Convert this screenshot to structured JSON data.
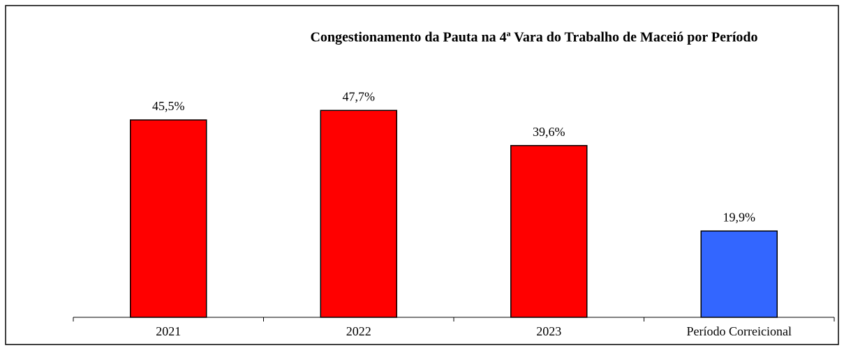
{
  "chart_data": {
    "type": "bar",
    "title": "Congestionamento da Pauta na 4ª Vara do Trabalho de Maceió por Período",
    "categories": [
      "2021",
      "2022",
      "2023",
      "Período Correicional"
    ],
    "values": [
      45.5,
      47.7,
      39.6,
      19.9
    ],
    "value_labels": [
      "45,5%",
      "47,7%",
      "39,6%",
      "19,9%"
    ],
    "colors": [
      "#ff0000",
      "#ff0000",
      "#ff0000",
      "#3366ff"
    ],
    "ylim": [
      0,
      50
    ]
  }
}
